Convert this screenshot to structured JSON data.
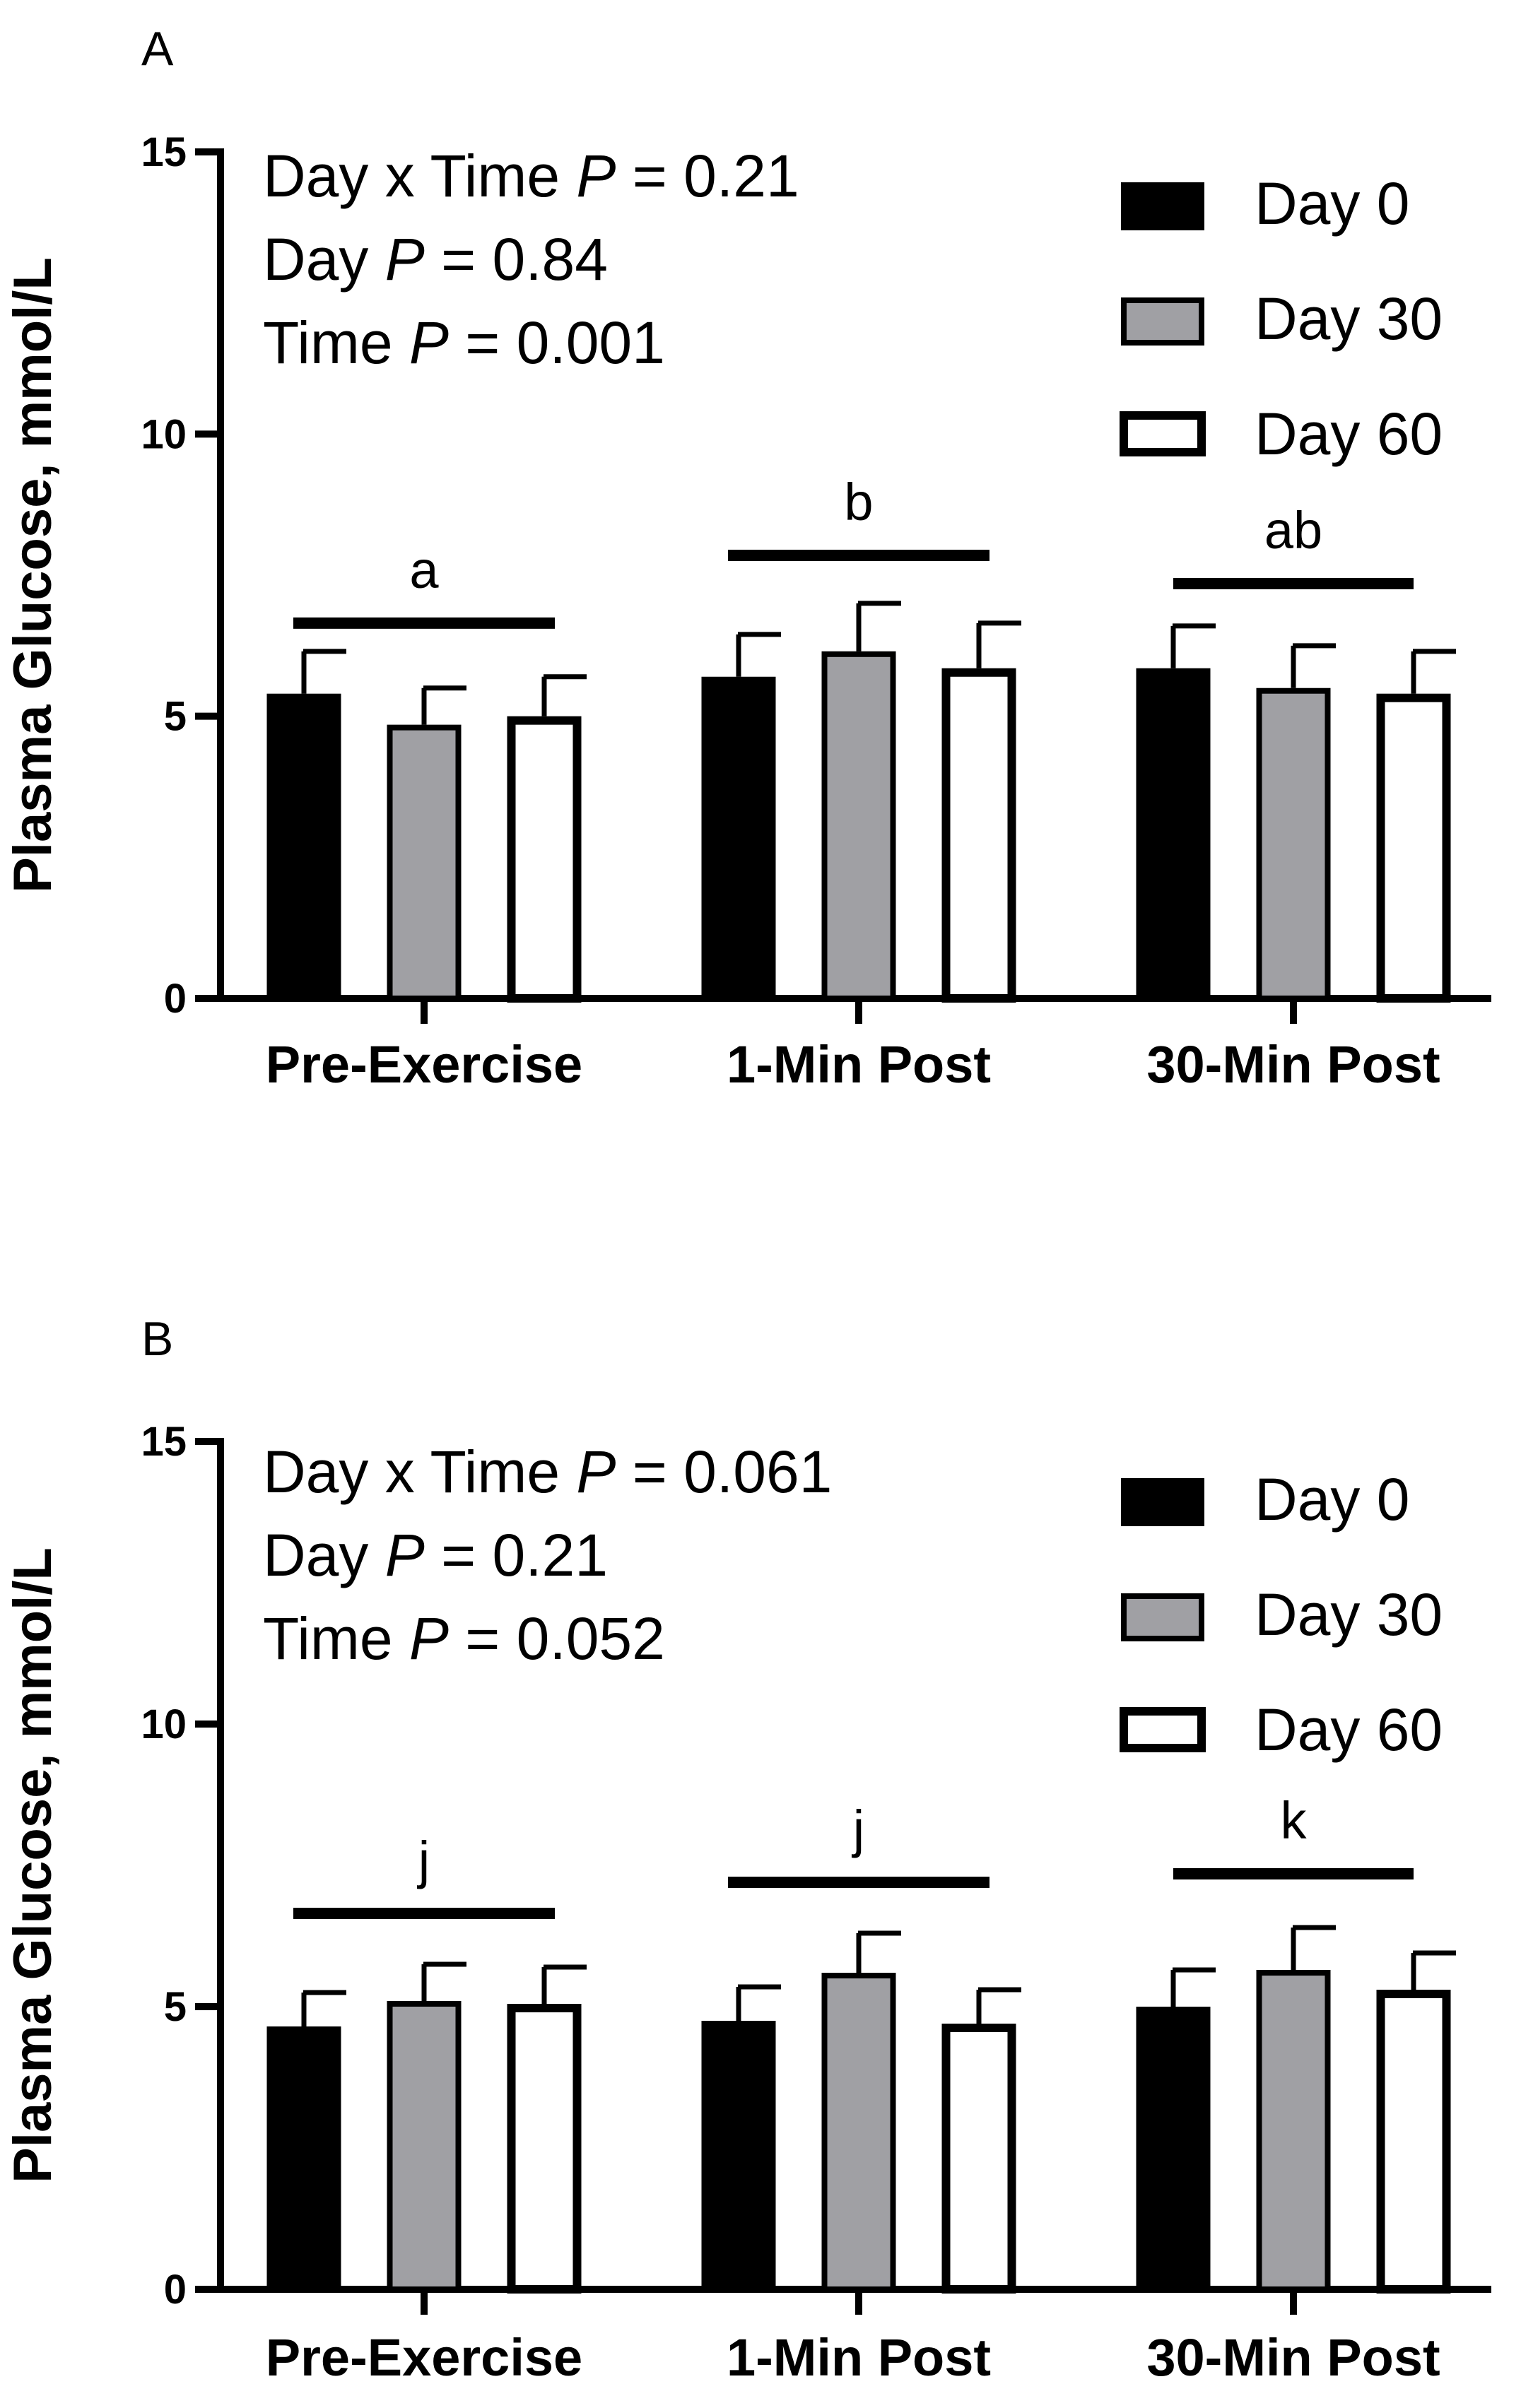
{
  "chart_data": [
    {
      "type": "bar",
      "panel": "A",
      "ylabel": "Plasma Glucose, mmol/L",
      "ylim": [
        0,
        15
      ],
      "yticks": [
        0,
        5,
        10,
        15
      ],
      "categories": [
        "Pre-Exercise",
        "1-Min Post",
        "30-Min Post"
      ],
      "series": [
        {
          "name": "Day 0",
          "fill": "#000000",
          "values": [
            5.4,
            5.7,
            5.85
          ],
          "errors": [
            0.75,
            0.75,
            0.75
          ]
        },
        {
          "name": "Day 30",
          "fill": "#a0a0a4",
          "values": [
            4.85,
            6.15,
            5.5
          ],
          "errors": [
            0.65,
            0.85,
            0.75
          ]
        },
        {
          "name": "Day 60",
          "fill": "#ffffff",
          "values": [
            5.0,
            5.85,
            5.4
          ],
          "errors": [
            0.7,
            0.8,
            0.75
          ]
        }
      ],
      "significance": [
        {
          "letter": "a",
          "bar_y": 6.65
        },
        {
          "letter": "b",
          "bar_y": 7.85
        },
        {
          "letter": "ab",
          "bar_y": 7.35
        }
      ],
      "stats": [
        {
          "prefix": "Day x  Time ",
          "p": "P",
          "suffix": " = 0.21"
        },
        {
          "prefix": "Day ",
          "p": "P",
          "suffix": " = 0.84"
        },
        {
          "prefix": "Time ",
          "p": "P",
          "suffix": " = 0.001"
        }
      ],
      "legend_position": "top-right"
    },
    {
      "type": "bar",
      "panel": "B",
      "ylabel": "Plasma Glucose, mmol/L",
      "ylim": [
        0,
        15
      ],
      "yticks": [
        0,
        5,
        10,
        15
      ],
      "categories": [
        "Pre-Exercise",
        "1-Min Post",
        "30-Min Post"
      ],
      "series": [
        {
          "name": "Day 0",
          "fill": "#000000",
          "values": [
            4.65,
            4.75,
            5.0
          ],
          "errors": [
            0.6,
            0.6,
            0.65
          ]
        },
        {
          "name": "Day 30",
          "fill": "#a0a0a4",
          "values": [
            5.1,
            5.6,
            5.65
          ],
          "errors": [
            0.65,
            0.7,
            0.75
          ]
        },
        {
          "name": "Day 60",
          "fill": "#ffffff",
          "values": [
            5.05,
            4.7,
            5.3
          ],
          "errors": [
            0.65,
            0.6,
            0.65
          ]
        }
      ],
      "significance": [
        {
          "letter": "j",
          "bar_y": 6.65
        },
        {
          "letter": "j",
          "bar_y": 7.2
        },
        {
          "letter": "k",
          "bar_y": 7.35
        }
      ],
      "stats": [
        {
          "prefix": "Day x  Time ",
          "p": "P",
          "suffix": " = 0.061"
        },
        {
          "prefix": "Day ",
          "p": "P",
          "suffix": " = 0.21"
        },
        {
          "prefix": "Time ",
          "p": "P",
          "suffix": " = 0.052"
        }
      ],
      "legend_position": "top-right"
    }
  ]
}
